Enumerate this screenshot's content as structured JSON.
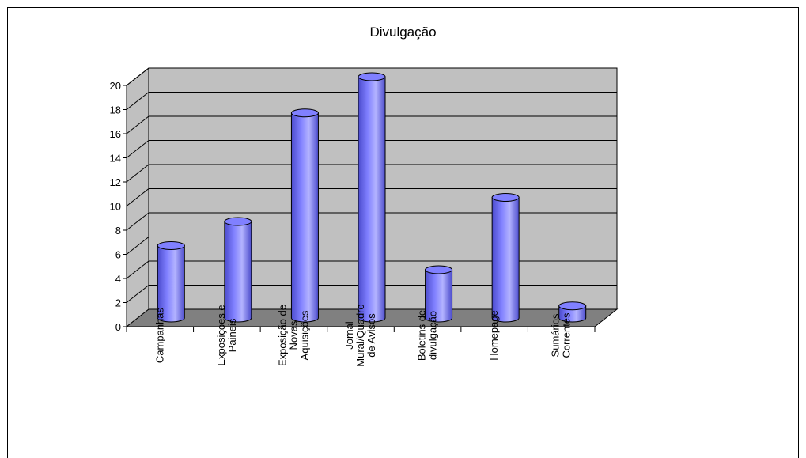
{
  "chart_data": {
    "type": "bar",
    "title": "Divulgação",
    "categories": [
      [
        "Campanhas"
      ],
      [
        "Exposiçoes e",
        "Paineis"
      ],
      [
        "Exposição de",
        "Novas",
        "Aquisições"
      ],
      [
        "Jornal",
        "Mural/Quadro",
        "de Avisos"
      ],
      [
        "Boletins de",
        "divulgação"
      ],
      [
        "Homepage"
      ],
      [
        "Sumários",
        "Correntes"
      ]
    ],
    "values": [
      6,
      8,
      17,
      20,
      4,
      10,
      1
    ],
    "ylim": [
      0,
      20
    ],
    "yticks": [
      "0",
      "2",
      "4",
      "6",
      "8",
      "10",
      "12",
      "14",
      "16",
      "18",
      "20"
    ],
    "grid": true,
    "legend": "none",
    "colors": {
      "bar": "#8080ff",
      "bar_dark": "#4b4bcc",
      "bar_light": "#b3b3ff",
      "wall": "#c0c0c0",
      "floor": "#808080",
      "gridline": "#000000"
    }
  }
}
